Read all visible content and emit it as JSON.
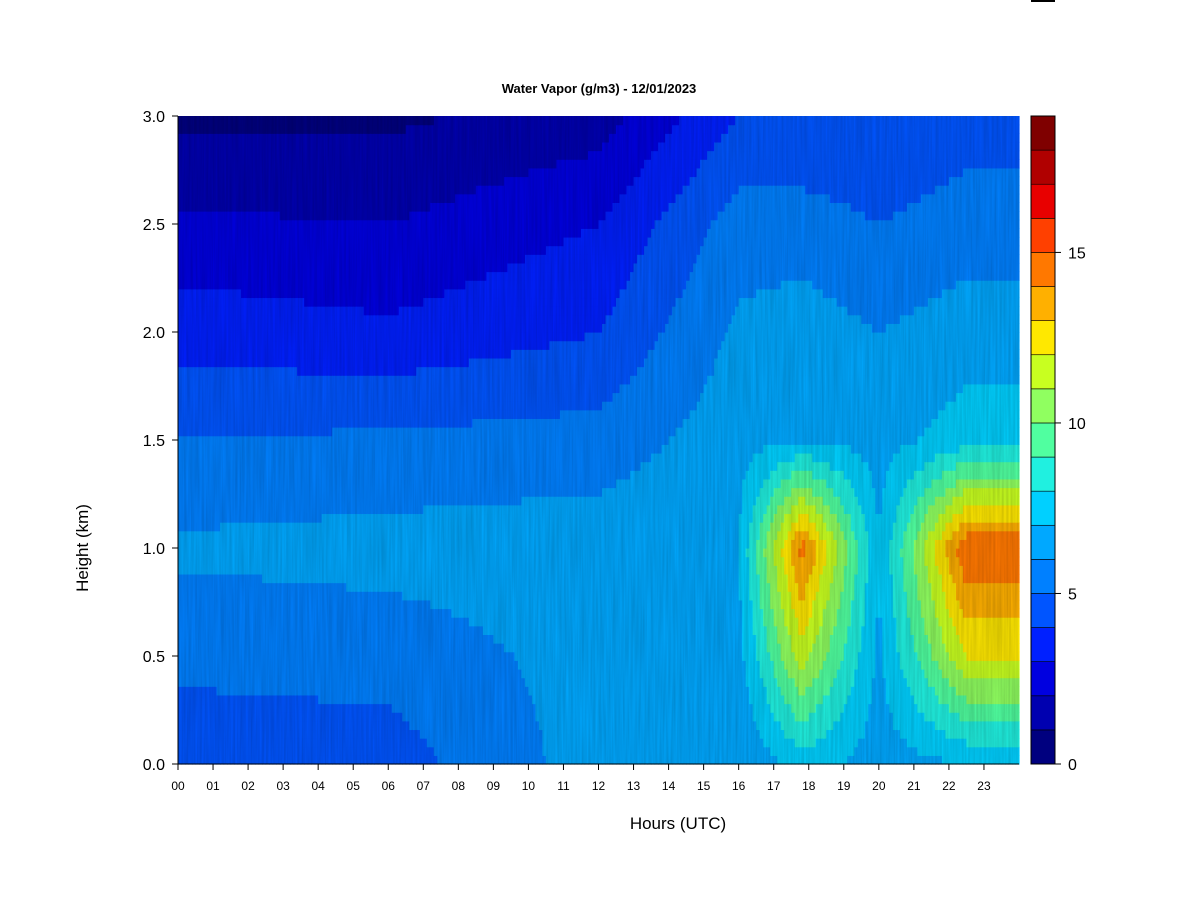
{
  "chart_data": {
    "type": "heatmap",
    "title": "Water Vapor (g/m3) - 12/01/2023",
    "xlabel": "Hours (UTC)",
    "ylabel": "Height (km)",
    "x_ticks": [
      "00",
      "01",
      "02",
      "03",
      "04",
      "05",
      "06",
      "07",
      "08",
      "09",
      "10",
      "11",
      "12",
      "13",
      "14",
      "15",
      "16",
      "17",
      "18",
      "19",
      "20",
      "21",
      "22",
      "23"
    ],
    "x_range": [
      0,
      24
    ],
    "y_ticks": [
      "0.0",
      "0.5",
      "1.0",
      "1.5",
      "2.0",
      "2.5",
      "3.0"
    ],
    "y_range": [
      0,
      3
    ],
    "colorbar": {
      "range": [
        0,
        18
      ],
      "step": 1,
      "ticks": [
        "0",
        "5",
        "10",
        "15"
      ],
      "colors": [
        "#00007f",
        "#0000b0",
        "#0000e0",
        "#0020ff",
        "#0055ff",
        "#0080ff",
        "#00a8ff",
        "#00d0ff",
        "#20f0e0",
        "#50ffa0",
        "#90ff60",
        "#c8ff20",
        "#ffe800",
        "#ffb000",
        "#ff7800",
        "#ff4000",
        "#e80000",
        "#b00000",
        "#7f0000"
      ]
    },
    "approx_columns_hours": [
      0,
      2,
      4,
      6,
      8,
      10,
      12,
      14,
      14.5,
      15.5,
      16.5,
      17.3,
      17.8,
      18.5,
      19.5,
      20.5,
      21.2,
      22,
      23,
      23.9
    ],
    "approx_profiles_gm3": [
      {
        "hour": 0,
        "height_km": [
          0.0,
          0.5,
          1.0,
          1.5,
          2.0,
          2.5,
          3.0
        ],
        "values": [
          4.5,
          5.2,
          6.2,
          5.0,
          3.6,
          2.2,
          0.8
        ]
      },
      {
        "hour": 6,
        "height_km": [
          0.0,
          0.5,
          1.0,
          1.5,
          2.0,
          2.5,
          3.0
        ],
        "values": [
          4.5,
          5.4,
          6.4,
          5.2,
          3.2,
          2.0,
          0.8
        ]
      },
      {
        "hour": 12,
        "height_km": [
          0.0,
          0.5,
          1.0,
          1.5,
          2.0,
          2.5,
          3.0
        ],
        "values": [
          6.5,
          6.4,
          6.6,
          5.4,
          4.0,
          3.0,
          1.5
        ]
      },
      {
        "hour": 16,
        "height_km": [
          0.0,
          0.5,
          1.0,
          1.5,
          2.0,
          2.5,
          3.0
        ],
        "values": [
          6.0,
          6.6,
          7.0,
          6.6,
          6.2,
          5.5,
          4.0
        ]
      },
      {
        "hour": 17.8,
        "height_km": [
          0.0,
          0.5,
          1.0,
          1.5,
          2.0,
          2.5,
          3.0
        ],
        "values": [
          7.5,
          11.5,
          14.5,
          7.0,
          6.5,
          5.5,
          4.0
        ]
      },
      {
        "hour": 20,
        "height_km": [
          0.0,
          0.5,
          1.0,
          1.5,
          2.0,
          2.5,
          3.0
        ],
        "values": [
          6.5,
          6.8,
          7.0,
          6.6,
          6.0,
          5.0,
          4.0
        ]
      },
      {
        "hour": 22.5,
        "height_km": [
          0.0,
          0.5,
          1.0,
          1.5,
          2.0,
          2.5,
          3.0
        ],
        "values": [
          7.0,
          12.0,
          15.0,
          7.5,
          6.5,
          5.5,
          4.5
        ]
      }
    ]
  }
}
